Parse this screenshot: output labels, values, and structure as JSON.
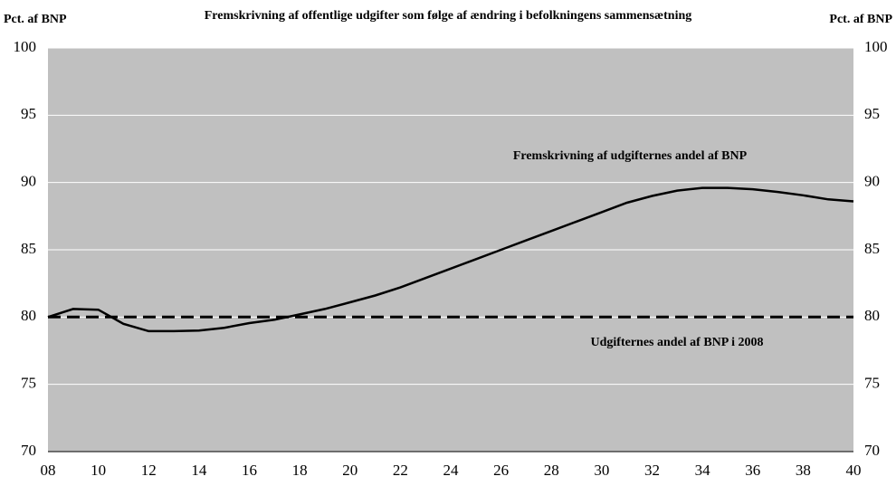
{
  "chart_data": {
    "type": "line",
    "title": "Fremskrivning af offentlige udgifter som følge af ændring i befolkningens sammensætning",
    "y_label": "Pct. af BNP",
    "y2_label": "Pct. af BNP",
    "categories": [
      "08",
      null,
      "10",
      null,
      "12",
      null,
      "14",
      null,
      "16",
      null,
      "18",
      null,
      "20",
      null,
      "22",
      null,
      "24",
      null,
      "26",
      null,
      "28",
      null,
      "30",
      null,
      "32",
      null,
      "34",
      null,
      "36",
      null,
      "38",
      null,
      "40"
    ],
    "series": [
      {
        "name": "Fremskrivning af udgifternes andel af BNP",
        "color": "#000000",
        "dashed": false,
        "values": [
          80.0,
          80.6,
          80.55,
          79.5,
          78.95,
          78.95,
          79.0,
          79.2,
          79.55,
          79.8,
          80.2,
          80.6,
          81.1,
          81.6,
          82.2,
          82.9,
          83.6,
          84.3,
          85.0,
          85.7,
          86.4,
          87.1,
          87.8,
          88.5,
          89.0,
          89.4,
          89.6,
          89.6,
          89.5,
          89.3,
          89.05,
          88.75,
          88.6
        ]
      },
      {
        "name": "Udgifternes andel af BNP i 2008",
        "color": "#000000",
        "dashed": true,
        "values": [
          80,
          80,
          80,
          80,
          80,
          80,
          80,
          80,
          80,
          80,
          80,
          80,
          80,
          80,
          80,
          80,
          80,
          80,
          80,
          80,
          80,
          80,
          80,
          80,
          80,
          80,
          80,
          80,
          80,
          80,
          80,
          80,
          80
        ]
      }
    ],
    "ylim": [
      70,
      100
    ],
    "yticks": [
      70,
      75,
      80,
      85,
      90,
      95,
      100
    ],
    "y2lim": [
      70,
      100
    ],
    "y2ticks": [
      70,
      75,
      80,
      85,
      90,
      95,
      100
    ],
    "grid": true,
    "grid_color": "#ffffff",
    "background": "#c0c0c0"
  }
}
